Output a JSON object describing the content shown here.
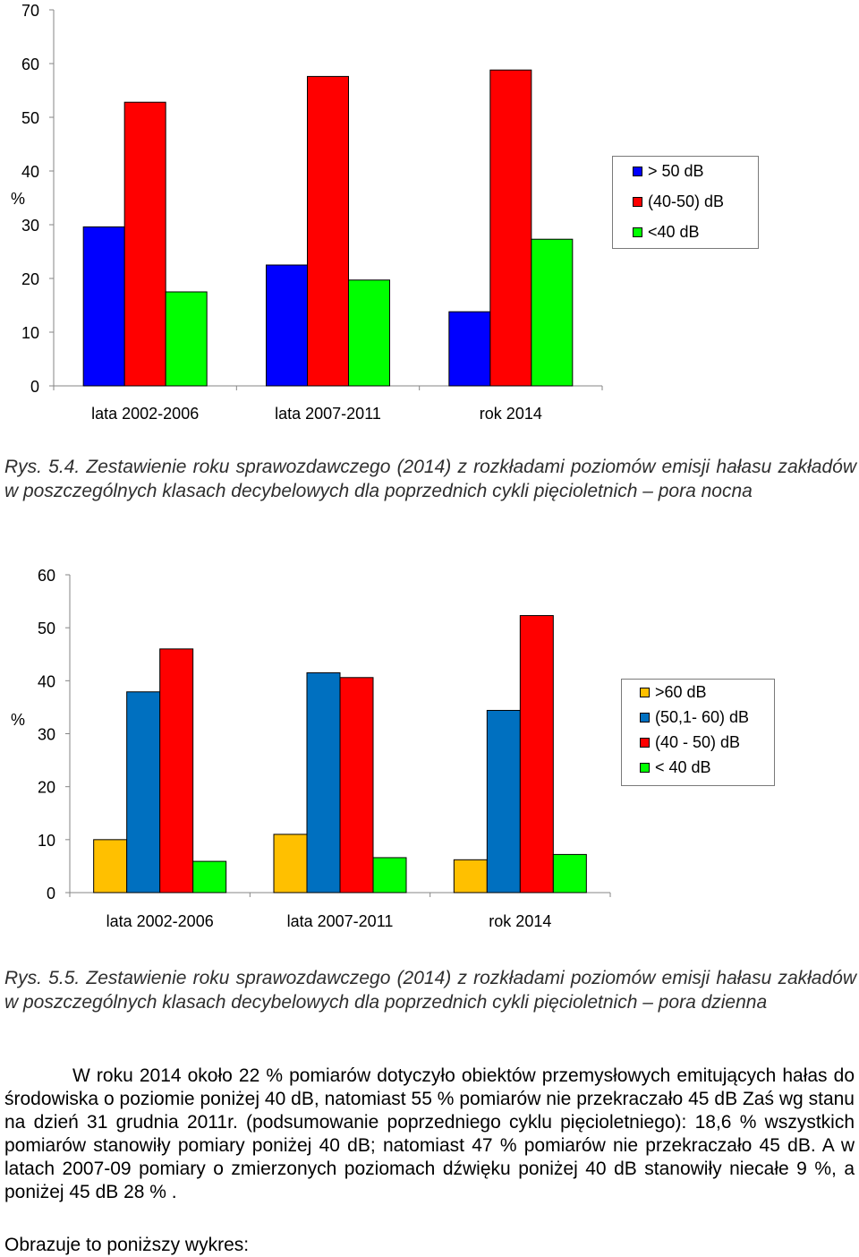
{
  "chart_data": [
    {
      "type": "bar",
      "title": "",
      "ylabel": "%",
      "ylim": [
        0,
        70
      ],
      "yticks": [
        "0",
        "10",
        "20",
        "30",
        "40",
        "50",
        "60",
        "70"
      ],
      "categories": [
        "lata 2002-2006",
        "lata 2007-2011",
        "rok 2014"
      ],
      "series": [
        {
          "name": "> 50 dB",
          "color": "#0000ff",
          "values": [
            29.6,
            22.5,
            13.8
          ]
        },
        {
          "name": "(40-50) dB",
          "color": "#ff0000",
          "values": [
            52.8,
            57.6,
            58.8
          ]
        },
        {
          "name": "<40 dB",
          "color": "#00ff00",
          "values": [
            17.5,
            19.7,
            27.3
          ]
        }
      ],
      "legend": "right",
      "grid": false
    },
    {
      "type": "bar",
      "title": "",
      "ylabel": "%",
      "ylim": [
        0,
        60
      ],
      "yticks": [
        "0",
        "10",
        "20",
        "30",
        "40",
        "50",
        "60"
      ],
      "categories": [
        "lata 2002-2006",
        "lata 2007-2011",
        "rok 2014"
      ],
      "series": [
        {
          "name": ">60 dB",
          "color": "#ffc000",
          "values": [
            10.0,
            11.0,
            6.2
          ]
        },
        {
          "name": "(50,1- 60) dB",
          "color": "#0070c0",
          "values": [
            37.9,
            41.5,
            34.4
          ]
        },
        {
          "name": "(40 - 50) dB",
          "color": "#ff0000",
          "values": [
            46.0,
            40.6,
            52.3
          ]
        },
        {
          "name": "< 40 dB",
          "color": "#00ff00",
          "values": [
            5.9,
            6.6,
            7.2
          ]
        }
      ],
      "legend": "right",
      "grid": false
    }
  ],
  "caption1": "Rys. 5.4. Zestawienie roku sprawozdawczego (2014) z rozkładami poziomów emisji hałasu zakładów w poszczególnych klasach decybelowych dla poprzednich cykli pięcioletnich – pora nocna",
  "caption2": "Rys. 5.5. Zestawienie roku sprawozdawczego (2014) z rozkładami poziomów emisji hałasu zakładów w poszczególnych klasach decybelowych dla poprzednich cykli pięcioletnich – pora dzienna",
  "paragraph": "W roku 2014 około 22 % pomiarów dotyczyło obiektów przemysłowych emitujących hałas do środowiska o poziomie poniżej 40 dB, natomiast 55 % pomiarów nie przekraczało 45 dB Zaś wg stanu na dzień 31 grudnia 2011r. (podsumowanie poprzedniego cyklu pięcioletniego): 18,6 % wszystkich pomiarów stanowiły pomiary poniżej 40 dB; natomiast 47 % pomiarów nie przekraczało 45 dB. A w latach 2007-09 pomiary o zmierzonych poziomach dźwięku poniżej 40 dB stanowiły niecałe 9 %, a poniżej 45 dB 28 % .",
  "paragraph2": "Obrazuje to poniższy wykres:"
}
